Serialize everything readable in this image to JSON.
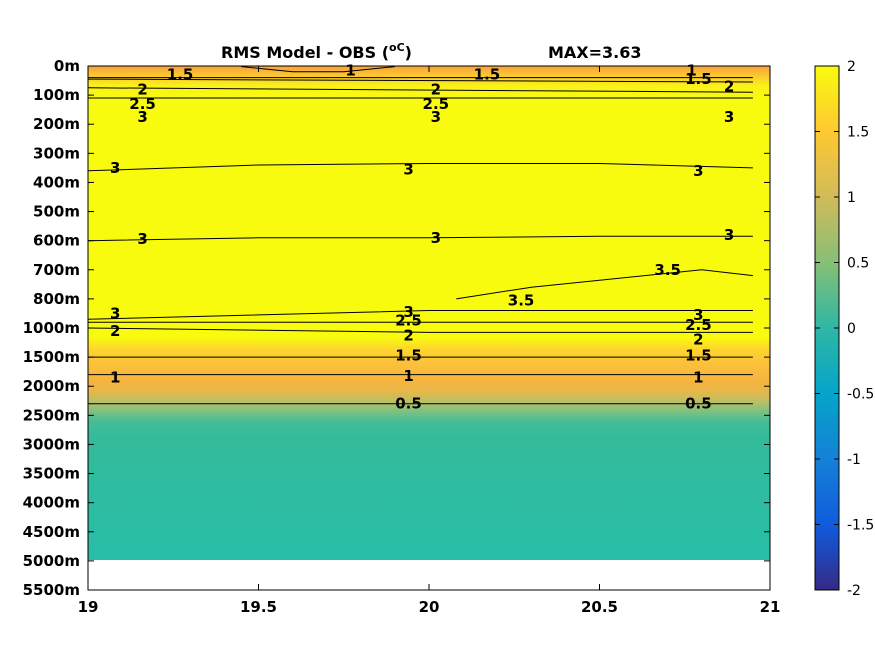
{
  "chart_data": {
    "type": "heatmap",
    "title": "RMS Model - OBS (",
    "title_unit": "oC",
    "title_close": ")",
    "max_label": "MAX=3.63",
    "x_ticks": [
      "19",
      "19.5",
      "20",
      "20.5",
      "21"
    ],
    "x_range": [
      19,
      21
    ],
    "y_ticks": [
      "0m",
      "100m",
      "200m",
      "300m",
      "400m",
      "500m",
      "600m",
      "700m",
      "800m",
      "1000m",
      "1500m",
      "2000m",
      "2500m",
      "3000m",
      "3500m",
      "4000m",
      "4500m",
      "5000m",
      "5500m"
    ],
    "x_data_extent": [
      19,
      20.95
    ],
    "y_data_extent_index": [
      0,
      17
    ],
    "colorbar": {
      "range": [
        -2,
        2
      ],
      "ticks": [
        "2",
        "1.5",
        "1",
        "0.5",
        "0",
        "-0.5",
        "-1",
        "-1.5",
        "-2"
      ]
    },
    "colormap": [
      "#352a87",
      "#0f5cdd",
      "#1481d6",
      "#06a4ca",
      "#2eb7a4",
      "#87bf77",
      "#d1bb59",
      "#fec832",
      "#f9fb0e"
    ],
    "contours": [
      {
        "level": 3.5,
        "points": [
          [
            20.08,
            8.0
          ],
          [
            20.3,
            7.6
          ],
          [
            20.55,
            7.3
          ],
          [
            20.8,
            7.0
          ],
          [
            20.95,
            7.2
          ]
        ],
        "labels": [
          {
            "x": 20.27,
            "y": 8.05
          },
          {
            "x": 20.7,
            "y": 7.0
          }
        ]
      },
      {
        "level": 3,
        "points": [
          [
            19,
            0.45
          ],
          [
            20.95,
            0.55
          ]
        ],
        "labels": [
          {
            "x": 19.16,
            "y": 1.75
          },
          {
            "x": 20.02,
            "y": 1.75
          },
          {
            "x": 20.88,
            "y": 1.75
          }
        ]
      },
      {
        "level": 3,
        "points": [
          [
            19,
            3.6
          ],
          [
            19.5,
            3.4
          ],
          [
            20,
            3.35
          ],
          [
            20.5,
            3.35
          ],
          [
            20.95,
            3.5
          ]
        ],
        "labels": [
          {
            "x": 19.08,
            "y": 3.5
          },
          {
            "x": 19.94,
            "y": 3.55
          },
          {
            "x": 20.79,
            "y": 3.6
          }
        ]
      },
      {
        "level": 3,
        "points": [
          [
            19,
            6.0
          ],
          [
            19.5,
            5.9
          ],
          [
            20,
            5.9
          ],
          [
            20.5,
            5.85
          ],
          [
            20.95,
            5.85
          ]
        ],
        "labels": [
          {
            "x": 19.16,
            "y": 5.95
          },
          {
            "x": 20.02,
            "y": 5.9
          },
          {
            "x": 20.88,
            "y": 5.8
          }
        ]
      },
      {
        "level": 3,
        "points": [
          [
            19,
            8.7
          ],
          [
            20,
            8.4
          ],
          [
            20.95,
            8.4
          ]
        ],
        "labels": [
          {
            "x": 19.08,
            "y": 8.5
          },
          {
            "x": 19.94,
            "y": 8.45
          },
          {
            "x": 20.79,
            "y": 8.55
          }
        ]
      },
      {
        "level": 2.5,
        "points": [
          [
            19,
            8.8
          ],
          [
            20,
            8.8
          ],
          [
            20.95,
            8.8
          ]
        ],
        "labels": [
          {
            "x": 19.94,
            "y": 8.75
          },
          {
            "x": 20.79,
            "y": 8.9
          }
        ]
      },
      {
        "level": 2.5,
        "points": [
          [
            19,
            1.1
          ],
          [
            20.95,
            1.1
          ]
        ],
        "labels": [
          {
            "x": 19.16,
            "y": 1.3
          },
          {
            "x": 20.02,
            "y": 1.3
          }
        ]
      },
      {
        "level": 2,
        "points": [
          [
            19,
            0.75
          ],
          [
            20.95,
            0.9
          ]
        ],
        "labels": [
          {
            "x": 19.16,
            "y": 0.8
          },
          {
            "x": 20.02,
            "y": 0.8
          },
          {
            "x": 20.88,
            "y": 0.7
          }
        ]
      },
      {
        "level": 2,
        "points": [
          [
            19,
            9.0
          ],
          [
            20,
            9.15
          ],
          [
            20.95,
            9.15
          ]
        ],
        "labels": [
          {
            "x": 19.08,
            "y": 9.1
          },
          {
            "x": 19.94,
            "y": 9.25
          },
          {
            "x": 20.79,
            "y": 9.4
          }
        ]
      },
      {
        "level": 1.5,
        "points": [
          [
            19,
            10.0
          ],
          [
            20.95,
            10.0
          ]
        ],
        "labels": [
          {
            "x": 19.94,
            "y": 9.95
          },
          {
            "x": 20.79,
            "y": 9.95
          }
        ]
      },
      {
        "level": 1.5,
        "points": [
          [
            19,
            0.4
          ],
          [
            20.95,
            0.4
          ]
        ],
        "labels": [
          {
            "x": 19.27,
            "y": 0.3
          },
          {
            "x": 20.17,
            "y": 0.3
          },
          {
            "x": 20.79,
            "y": 0.45
          }
        ]
      },
      {
        "level": 1,
        "points": [
          [
            19.45,
            0.02
          ],
          [
            19.6,
            0.2
          ],
          [
            19.75,
            0.2
          ],
          [
            19.9,
            0.02
          ]
        ],
        "labels": [
          {
            "x": 19.77,
            "y": 0.15
          },
          {
            "x": 20.77,
            "y": 0.15
          }
        ]
      },
      {
        "level": 1,
        "points": [
          [
            19,
            10.6
          ],
          [
            20.95,
            10.6
          ]
        ],
        "labels": [
          {
            "x": 19.08,
            "y": 10.7
          },
          {
            "x": 19.94,
            "y": 10.65
          },
          {
            "x": 20.79,
            "y": 10.7
          }
        ]
      },
      {
        "level": 0.5,
        "points": [
          [
            19,
            11.6
          ],
          [
            20.95,
            11.6
          ]
        ],
        "labels": [
          {
            "x": 19.94,
            "y": 11.6
          },
          {
            "x": 20.79,
            "y": 11.6
          }
        ]
      }
    ]
  }
}
